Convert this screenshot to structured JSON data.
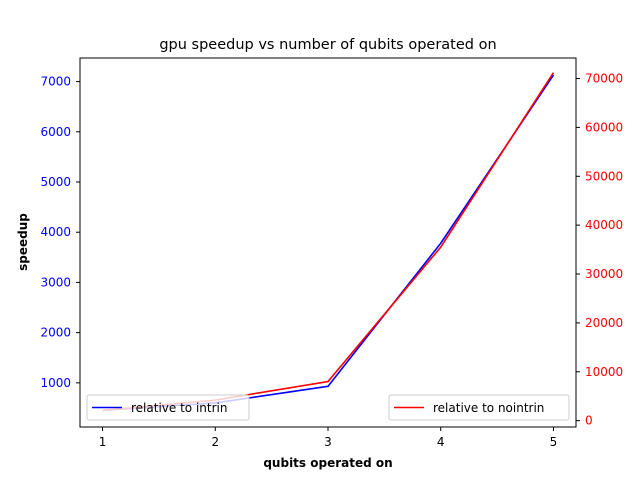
{
  "chart_data": {
    "type": "line",
    "title": "gpu speedup vs number of qubits operated on",
    "xlabel": "qubits operated on",
    "ylabel": "speedup",
    "x": [
      1,
      2,
      3,
      4,
      5
    ],
    "xlim": [
      0.8,
      5.2
    ],
    "x_ticks": [
      1,
      2,
      3,
      4,
      5
    ],
    "grid": false,
    "left_axis": {
      "ylim": [
        120,
        7470
      ],
      "ticks": [
        1000,
        2000,
        3000,
        4000,
        5000,
        6000,
        7000
      ],
      "color": "#0000ff"
    },
    "right_axis": {
      "ylim": [
        -1300,
        74200
      ],
      "ticks": [
        0,
        10000,
        20000,
        30000,
        40000,
        50000,
        60000,
        70000
      ],
      "color": "#ff0000"
    },
    "series": [
      {
        "name": "relative to intrin",
        "axis": "left",
        "color": "#0000ff",
        "values": [
          450,
          600,
          930,
          3780,
          7130
        ],
        "legend_position": "lower-left"
      },
      {
        "name": "relative to nointrin",
        "axis": "right",
        "color": "#ff0000",
        "values": [
          2100,
          4200,
          8000,
          35500,
          71200
        ],
        "legend_position": "lower-right"
      }
    ]
  }
}
